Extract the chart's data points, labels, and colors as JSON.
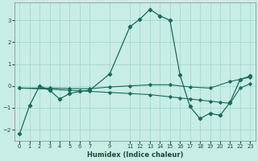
{
  "xlabel": "Humidex (Indice chaleur)",
  "bg_color": "#c8ece6",
  "grid_color": "#a0d4cc",
  "line_color": "#1a6b5a",
  "xlim": [
    -0.5,
    23.5
  ],
  "ylim": [
    -2.5,
    3.8
  ],
  "yticks": [
    -2,
    -1,
    0,
    1,
    2,
    3
  ],
  "xticks": [
    0,
    1,
    2,
    3,
    4,
    5,
    6,
    7,
    9,
    11,
    12,
    13,
    14,
    15,
    16,
    17,
    18,
    19,
    20,
    21,
    22,
    23
  ],
  "series1_x": [
    0,
    1,
    2,
    3,
    4,
    5,
    6,
    7,
    9,
    11,
    12,
    13,
    14,
    15,
    16,
    17,
    18,
    19,
    20,
    21,
    22,
    23
  ],
  "series1_y": [
    -2.2,
    -0.9,
    0.0,
    -0.2,
    -0.6,
    -0.35,
    -0.25,
    -0.2,
    0.55,
    2.7,
    3.05,
    3.5,
    3.2,
    3.0,
    0.5,
    -0.95,
    -1.5,
    -1.25,
    -1.35,
    -0.75,
    0.3,
    0.45
  ],
  "series2_x": [
    0,
    3,
    5,
    7,
    9,
    11,
    13,
    15,
    16,
    17,
    18,
    19,
    20,
    21,
    22,
    23
  ],
  "series2_y": [
    -0.1,
    -0.15,
    -0.2,
    -0.25,
    -0.3,
    -0.35,
    -0.4,
    -0.5,
    -0.55,
    -0.6,
    -0.65,
    -0.7,
    -0.75,
    -0.8,
    -0.1,
    0.1
  ],
  "series3_x": [
    0,
    3,
    5,
    7,
    9,
    11,
    13,
    15,
    17,
    19,
    21,
    23
  ],
  "series3_y": [
    -0.1,
    -0.1,
    -0.12,
    -0.13,
    -0.05,
    0.0,
    0.05,
    0.05,
    -0.05,
    -0.1,
    0.2,
    0.4
  ]
}
